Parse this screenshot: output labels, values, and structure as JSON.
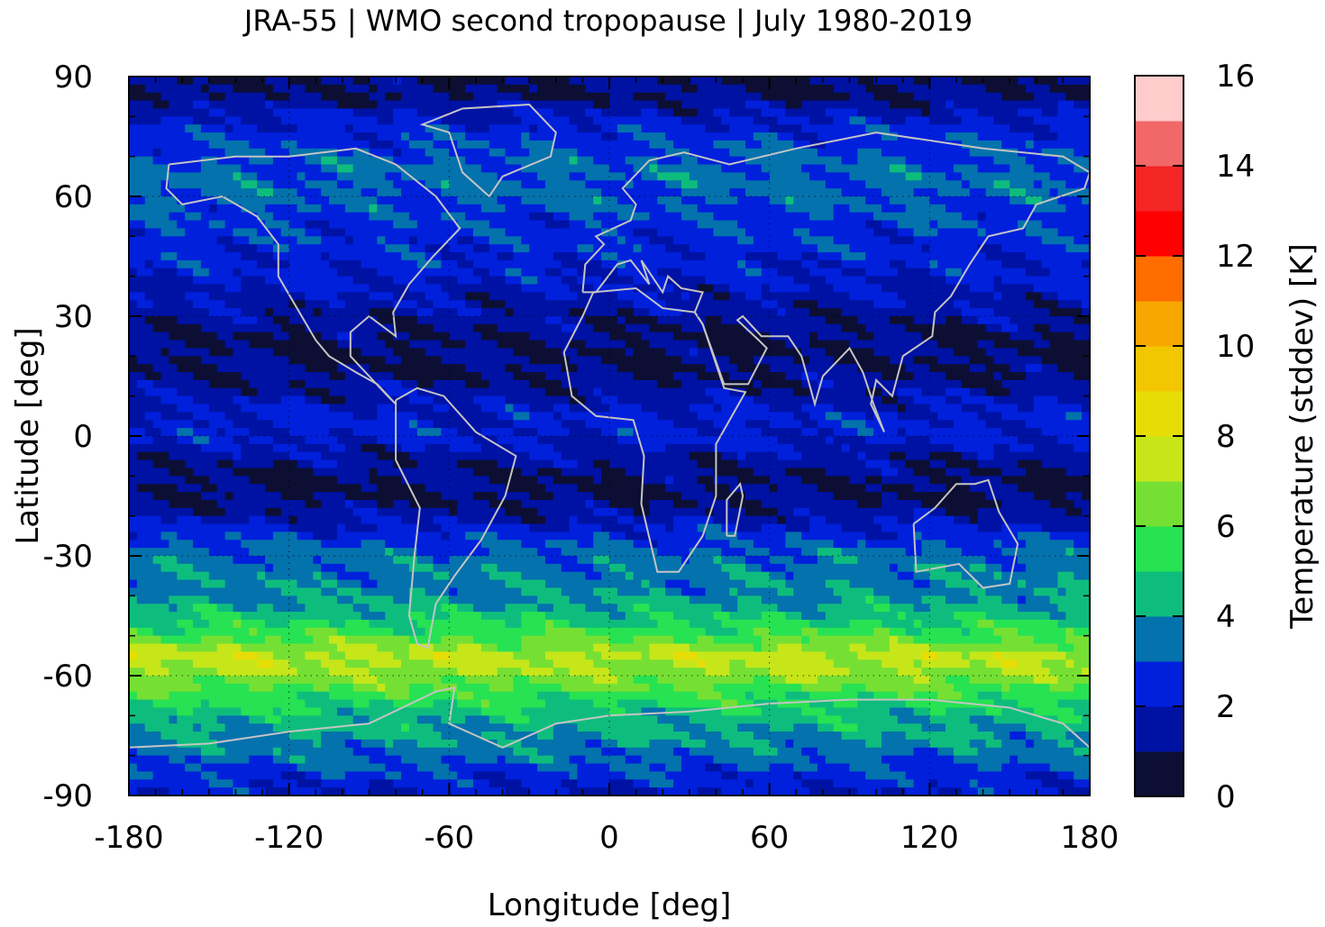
{
  "chart_data": {
    "type": "heatmap",
    "title": "JRA-55 | WMO second tropopause | July 1980-2019",
    "xlabel": "Longitude [deg]",
    "ylabel": "Latitude [deg]",
    "xlim": [
      -180,
      180
    ],
    "ylim": [
      -90,
      90
    ],
    "x_ticks": [
      "-180",
      "-120",
      "-60",
      "0",
      "60",
      "120",
      "180"
    ],
    "y_ticks": [
      "90",
      "60",
      "30",
      "0",
      "-30",
      "-60",
      "-90"
    ],
    "grid": "dotted",
    "coastlines": "gray",
    "colorbar": {
      "label": "Temperature (stddev) [K]",
      "range": [
        0,
        16
      ],
      "step": 1,
      "ticks": [
        "0",
        "2",
        "4",
        "6",
        "8",
        "10",
        "12",
        "14",
        "16"
      ],
      "colors": [
        "#0c0f33",
        "#0012a4",
        "#0020dc",
        "#0472ac",
        "#0ebd7e",
        "#27e252",
        "#75e033",
        "#c6e61a",
        "#e7dd06",
        "#f2c601",
        "#f7a700",
        "#ff6c00",
        "#ff0000",
        "#f32525",
        "#f26868",
        "#ffcccc"
      ]
    },
    "zonal_profile_approx": [
      {
        "lat": 90,
        "value": 1.0
      },
      {
        "lat": 85,
        "value": 1.0
      },
      {
        "lat": 80,
        "value": 2.0
      },
      {
        "lat": 75,
        "value": 2.6
      },
      {
        "lat": 70,
        "value": 3.0
      },
      {
        "lat": 65,
        "value": 3.3
      },
      {
        "lat": 60,
        "value": 3.2
      },
      {
        "lat": 55,
        "value": 2.8
      },
      {
        "lat": 50,
        "value": 2.6
      },
      {
        "lat": 45,
        "value": 2.4
      },
      {
        "lat": 40,
        "value": 2.2
      },
      {
        "lat": 35,
        "value": 1.8
      },
      {
        "lat": 30,
        "value": 1.4
      },
      {
        "lat": 25,
        "value": 1.0
      },
      {
        "lat": 20,
        "value": 0.9
      },
      {
        "lat": 15,
        "value": 1.1
      },
      {
        "lat": 10,
        "value": 1.6
      },
      {
        "lat": 5,
        "value": 2.2
      },
      {
        "lat": 0,
        "value": 2.3
      },
      {
        "lat": -5,
        "value": 1.5
      },
      {
        "lat": -10,
        "value": 1.0
      },
      {
        "lat": -15,
        "value": 0.9
      },
      {
        "lat": -20,
        "value": 1.5
      },
      {
        "lat": -25,
        "value": 2.6
      },
      {
        "lat": -30,
        "value": 3.4
      },
      {
        "lat": -35,
        "value": 3.6
      },
      {
        "lat": -40,
        "value": 3.8
      },
      {
        "lat": -45,
        "value": 4.6
      },
      {
        "lat": -50,
        "value": 5.8
      },
      {
        "lat": -55,
        "value": 7.4
      },
      {
        "lat": -60,
        "value": 6.8
      },
      {
        "lat": -65,
        "value": 5.5
      },
      {
        "lat": -70,
        "value": 4.5
      },
      {
        "lat": -75,
        "value": 4.0
      },
      {
        "lat": -80,
        "value": 3.4
      },
      {
        "lat": -85,
        "value": 2.6
      },
      {
        "lat": -90,
        "value": 2.0
      }
    ]
  }
}
